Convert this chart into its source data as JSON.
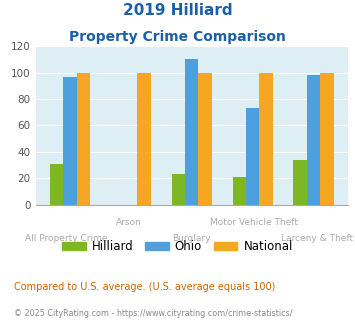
{
  "title_line1": "2019 Hilliard",
  "title_line2": "Property Crime Comparison",
  "categories": [
    "All Property Crime",
    "Arson",
    "Burglary",
    "Motor Vehicle Theft",
    "Larceny & Theft"
  ],
  "hilliard": [
    31,
    0,
    23,
    21,
    34
  ],
  "ohio": [
    97,
    0,
    110,
    73,
    98
  ],
  "national": [
    100,
    100,
    100,
    100,
    100
  ],
  "hilliard_color": "#7db726",
  "ohio_color": "#4d9fde",
  "national_color": "#f5a623",
  "bg_color": "#ddeef4",
  "title_color": "#1a5fa8",
  "ylim": [
    0,
    120
  ],
  "yticks": [
    0,
    20,
    40,
    60,
    80,
    100,
    120
  ],
  "footnote1": "Compared to U.S. average. (U.S. average equals 100)",
  "footnote2": "© 2025 CityRating.com - https://www.cityrating.com/crime-statistics/",
  "footnote1_color": "#cc6600",
  "footnote2_color": "#888888",
  "xlabel_color": "#aaaaaa",
  "bar_width": 0.22,
  "group_positions": [
    0,
    1,
    2,
    3,
    4
  ],
  "row1_labels": {
    "1": "Arson",
    "3": "Motor Vehicle Theft"
  },
  "row2_labels": {
    "0": "All Property Crime",
    "2": "Burglary",
    "4": "Larceny & Theft"
  }
}
